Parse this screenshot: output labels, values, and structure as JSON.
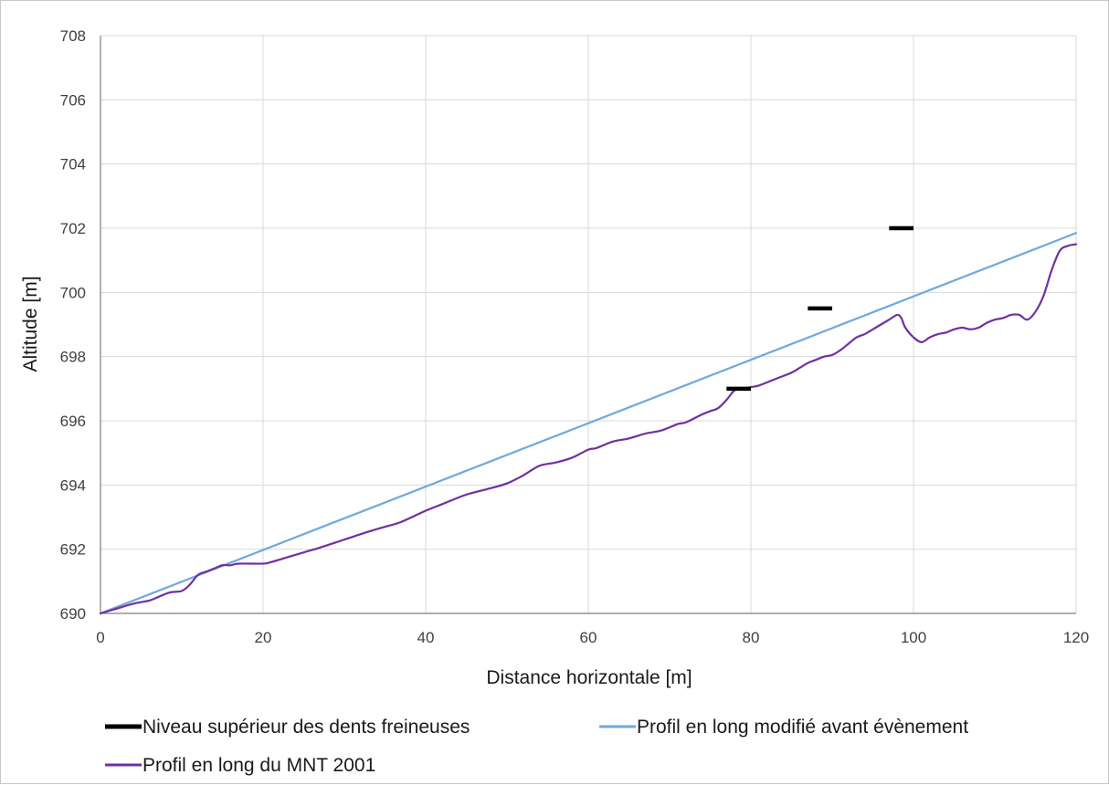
{
  "chart_data": {
    "type": "line",
    "title": "",
    "xlabel": "Distance horizontale [m]",
    "ylabel": "Altitude [m]",
    "xlim": [
      0,
      120
    ],
    "ylim": [
      690,
      708
    ],
    "xticks": [
      0,
      20,
      40,
      60,
      80,
      100,
      120
    ],
    "yticks": [
      690,
      692,
      694,
      696,
      698,
      700,
      702,
      704,
      706,
      708
    ],
    "grid": true,
    "legend_position": "bottom",
    "series": [
      {
        "name": "Niveau supérieur des dents freineuses",
        "kind": "segments",
        "color": "#000000",
        "segments": [
          [
            [
              77,
              697.0
            ],
            [
              80,
              697.0
            ]
          ],
          [
            [
              87,
              699.5
            ],
            [
              90,
              699.5
            ]
          ],
          [
            [
              97,
              702.0
            ],
            [
              100,
              702.0
            ]
          ]
        ]
      },
      {
        "name": "Profil en long modifié avant évènement",
        "kind": "line",
        "color": "#6fa8dc",
        "x": [
          0,
          120
        ],
        "y": [
          690.0,
          701.85
        ]
      },
      {
        "name": "Profil en long du MNT 2001",
        "kind": "line",
        "color": "#7030a0",
        "x": [
          0,
          2,
          4,
          6,
          7,
          8.5,
          10,
          11,
          12,
          13,
          14,
          15,
          16,
          17,
          20,
          21,
          23,
          25,
          27,
          30,
          33,
          35,
          37,
          40,
          42,
          45,
          48,
          50,
          52,
          54,
          56,
          58,
          60,
          61,
          63,
          65,
          67,
          69,
          71,
          72,
          74,
          75,
          76,
          77,
          78,
          79,
          80,
          81,
          83,
          85,
          86,
          87,
          88,
          89,
          90,
          91,
          92,
          93,
          94,
          95,
          96,
          97,
          98,
          98.5,
          99,
          100,
          101,
          102,
          103,
          104,
          105,
          106,
          107,
          108,
          109,
          110,
          111,
          112,
          113,
          114,
          115,
          116,
          117,
          118,
          119,
          120
        ],
        "y": [
          690.0,
          690.15,
          690.3,
          690.4,
          690.5,
          690.65,
          690.7,
          690.9,
          691.2,
          691.3,
          691.4,
          691.5,
          691.5,
          691.55,
          691.55,
          691.6,
          691.75,
          691.9,
          692.05,
          692.3,
          692.55,
          692.7,
          692.85,
          693.2,
          693.4,
          693.7,
          693.9,
          694.05,
          694.3,
          694.6,
          694.7,
          694.85,
          695.1,
          695.15,
          695.35,
          695.45,
          695.6,
          695.7,
          695.9,
          695.95,
          696.2,
          696.3,
          696.4,
          696.65,
          696.95,
          697.0,
          697.05,
          697.1,
          697.3,
          697.5,
          697.65,
          697.8,
          697.9,
          698.0,
          698.05,
          698.2,
          698.4,
          698.6,
          698.7,
          698.85,
          699.0,
          699.15,
          699.3,
          699.2,
          698.9,
          698.6,
          698.45,
          698.6,
          698.7,
          698.75,
          698.85,
          698.9,
          698.85,
          698.9,
          699.05,
          699.15,
          699.2,
          699.3,
          699.3,
          699.15,
          699.4,
          699.9,
          700.7,
          701.3,
          701.45,
          701.5
        ]
      }
    ]
  }
}
